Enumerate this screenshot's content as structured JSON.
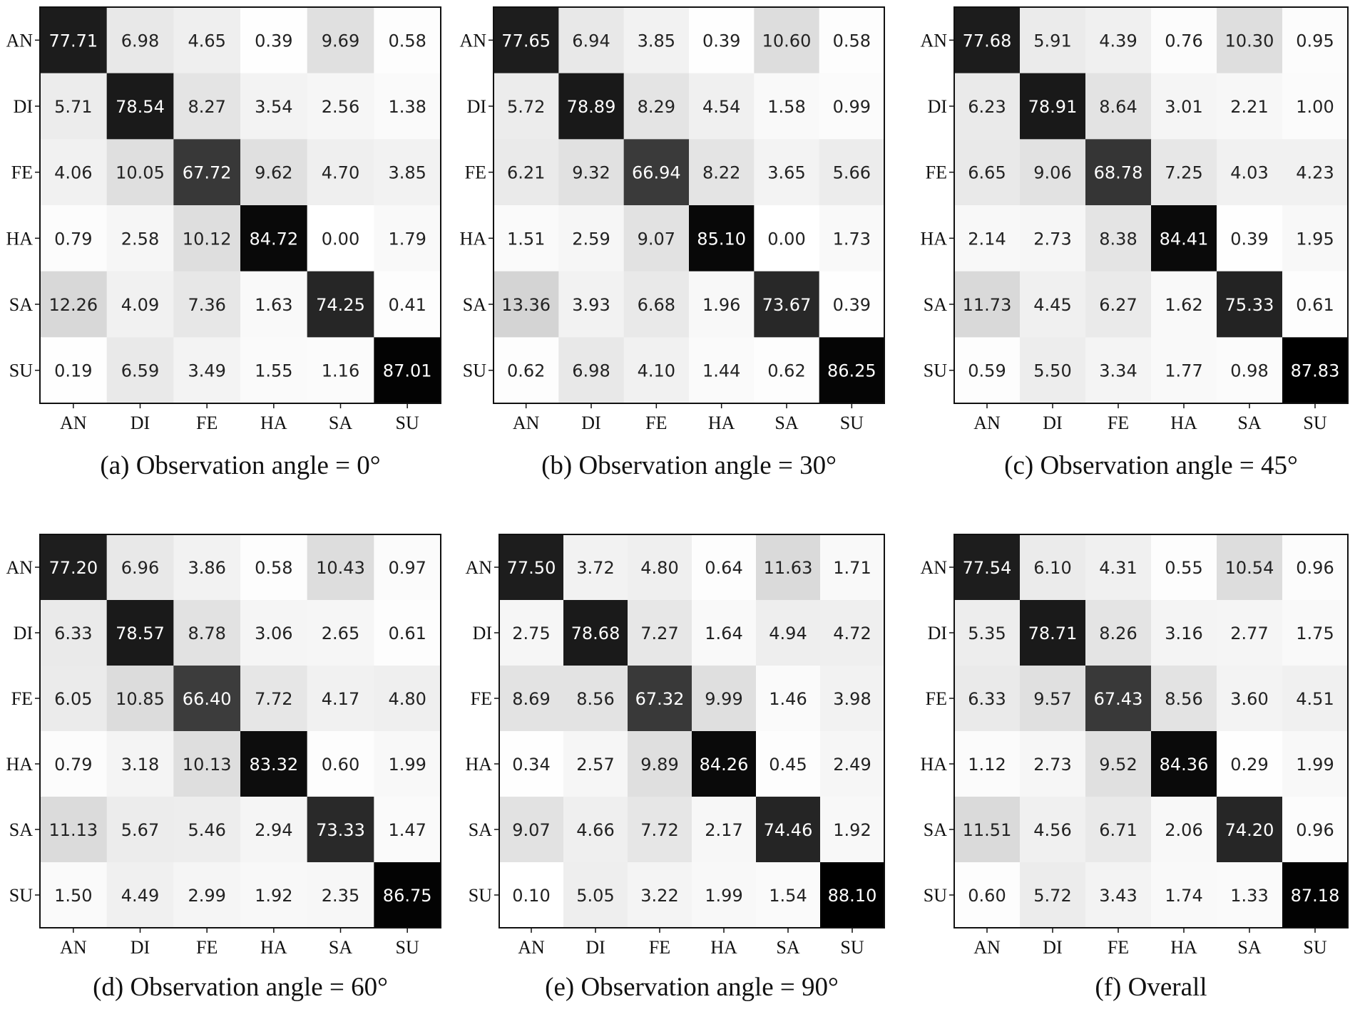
{
  "chart_data": [
    {
      "type": "heatmap",
      "caption": "(a) Observation angle = 0°",
      "x_labels": [
        "AN",
        "DI",
        "FE",
        "HA",
        "SA",
        "SU"
      ],
      "y_labels": [
        "AN",
        "DI",
        "FE",
        "HA",
        "SA",
        "SU"
      ],
      "colormap": "grayscale (white = low, black = high)",
      "values": [
        [
          "77.71",
          "6.98",
          "4.65",
          "0.39",
          "9.69",
          "0.58"
        ],
        [
          "5.71",
          "78.54",
          "8.27",
          "3.54",
          "2.56",
          "1.38"
        ],
        [
          "4.06",
          "10.05",
          "67.72",
          "9.62",
          "4.70",
          "3.85"
        ],
        [
          "0.79",
          "2.58",
          "10.12",
          "84.72",
          "0.00",
          "1.79"
        ],
        [
          "12.26",
          "4.09",
          "7.36",
          "1.63",
          "74.25",
          "0.41"
        ],
        [
          "0.19",
          "6.59",
          "3.49",
          "1.55",
          "1.16",
          "87.01"
        ]
      ]
    },
    {
      "type": "heatmap",
      "caption": "(b) Observation angle = 30°",
      "x_labels": [
        "AN",
        "DI",
        "FE",
        "HA",
        "SA",
        "SU"
      ],
      "y_labels": [
        "AN",
        "DI",
        "FE",
        "HA",
        "SA",
        "SU"
      ],
      "colormap": "grayscale (white = low, black = high)",
      "values": [
        [
          "77.65",
          "6.94",
          "3.85",
          "0.39",
          "10.60",
          "0.58"
        ],
        [
          "5.72",
          "78.89",
          "8.29",
          "4.54",
          "1.58",
          "0.99"
        ],
        [
          "6.21",
          "9.32",
          "66.94",
          "8.22",
          "3.65",
          "5.66"
        ],
        [
          "1.51",
          "2.59",
          "9.07",
          "85.10",
          "0.00",
          "1.73"
        ],
        [
          "13.36",
          "3.93",
          "6.68",
          "1.96",
          "73.67",
          "0.39"
        ],
        [
          "0.62",
          "6.98",
          "4.10",
          "1.44",
          "0.62",
          "86.25"
        ]
      ]
    },
    {
      "type": "heatmap",
      "caption": "(c) Observation angle = 45°",
      "x_labels": [
        "AN",
        "DI",
        "FE",
        "HA",
        "SA",
        "SU"
      ],
      "y_labels": [
        "AN",
        "DI",
        "FE",
        "HA",
        "SA",
        "SU"
      ],
      "colormap": "grayscale (white = low, black = high)",
      "values": [
        [
          "77.68",
          "5.91",
          "4.39",
          "0.76",
          "10.30",
          "0.95"
        ],
        [
          "6.23",
          "78.91",
          "8.64",
          "3.01",
          "2.21",
          "1.00"
        ],
        [
          "6.65",
          "9.06",
          "68.78",
          "7.25",
          "4.03",
          "4.23"
        ],
        [
          "2.14",
          "2.73",
          "8.38",
          "84.41",
          "0.39",
          "1.95"
        ],
        [
          "11.73",
          "4.45",
          "6.27",
          "1.62",
          "75.33",
          "0.61"
        ],
        [
          "0.59",
          "5.50",
          "3.34",
          "1.77",
          "0.98",
          "87.83"
        ]
      ]
    },
    {
      "type": "heatmap",
      "caption": "(d) Observation angle = 60°",
      "x_labels": [
        "AN",
        "DI",
        "FE",
        "HA",
        "SA",
        "SU"
      ],
      "y_labels": [
        "AN",
        "DI",
        "FE",
        "HA",
        "SA",
        "SU"
      ],
      "colormap": "grayscale (white = low, black = high)",
      "values": [
        [
          "77.20",
          "6.96",
          "3.86",
          "0.58",
          "10.43",
          "0.97"
        ],
        [
          "6.33",
          "78.57",
          "8.78",
          "3.06",
          "2.65",
          "0.61"
        ],
        [
          "6.05",
          "10.85",
          "66.40",
          "7.72",
          "4.17",
          "4.80"
        ],
        [
          "0.79",
          "3.18",
          "10.13",
          "83.32",
          "0.60",
          "1.99"
        ],
        [
          "11.13",
          "5.67",
          "5.46",
          "2.94",
          "73.33",
          "1.47"
        ],
        [
          "1.50",
          "4.49",
          "2.99",
          "1.92",
          "2.35",
          "86.75"
        ]
      ]
    },
    {
      "type": "heatmap",
      "caption": "(e) Observation angle = 90°",
      "x_labels": [
        "AN",
        "DI",
        "FE",
        "HA",
        "SA",
        "SU"
      ],
      "y_labels": [
        "AN",
        "DI",
        "FE",
        "HA",
        "SA",
        "SU"
      ],
      "colormap": "grayscale (white = low, black = high)",
      "values": [
        [
          "77.50",
          "3.72",
          "4.80",
          "0.64",
          "11.63",
          "1.71"
        ],
        [
          "2.75",
          "78.68",
          "7.27",
          "1.64",
          "4.94",
          "4.72"
        ],
        [
          "8.69",
          "8.56",
          "67.32",
          "9.99",
          "1.46",
          "3.98"
        ],
        [
          "0.34",
          "2.57",
          "9.89",
          "84.26",
          "0.45",
          "2.49"
        ],
        [
          "9.07",
          "4.66",
          "7.72",
          "2.17",
          "74.46",
          "1.92"
        ],
        [
          "0.10",
          "5.05",
          "3.22",
          "1.99",
          "1.54",
          "88.10"
        ]
      ]
    },
    {
      "type": "heatmap",
      "caption": "(f) Overall",
      "x_labels": [
        "AN",
        "DI",
        "FE",
        "HA",
        "SA",
        "SU"
      ],
      "y_labels": [
        "AN",
        "DI",
        "FE",
        "HA",
        "SA",
        "SU"
      ],
      "colormap": "grayscale (white = low, black = high)",
      "values": [
        [
          "77.54",
          "6.10",
          "4.31",
          "0.55",
          "10.54",
          "0.96"
        ],
        [
          "5.35",
          "78.71",
          "8.26",
          "3.16",
          "2.77",
          "1.75"
        ],
        [
          "6.33",
          "9.57",
          "67.43",
          "8.56",
          "3.60",
          "4.51"
        ],
        [
          "1.12",
          "2.73",
          "9.52",
          "84.36",
          "0.29",
          "1.99"
        ],
        [
          "11.51",
          "4.56",
          "6.71",
          "2.06",
          "74.20",
          "0.96"
        ],
        [
          "0.60",
          "5.72",
          "3.43",
          "1.74",
          "1.33",
          "87.18"
        ]
      ]
    }
  ]
}
